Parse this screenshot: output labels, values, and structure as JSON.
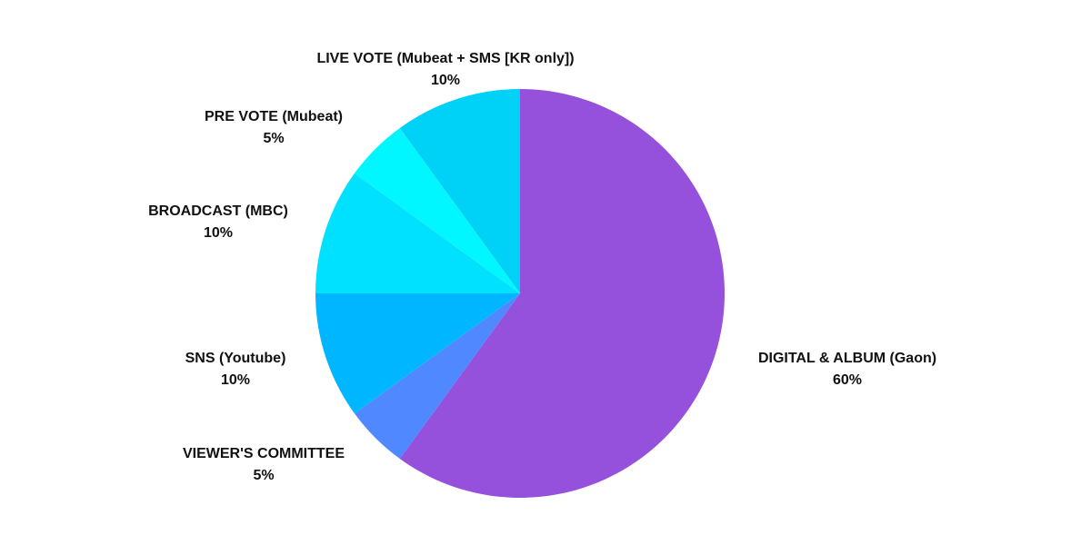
{
  "chart_data": {
    "type": "pie",
    "title": "",
    "slices": [
      {
        "label": "DIGITAL & ALBUM (Gaon)",
        "value": 60,
        "display": "60%",
        "color": "#9550dc"
      },
      {
        "label": "VIEWER'S COMMITTEE",
        "value": 5,
        "display": "5%",
        "color": "#4f88ff"
      },
      {
        "label": "SNS (Youtube)",
        "value": 10,
        "display": "10%",
        "color": "#00b7ff"
      },
      {
        "label": "BROADCAST (MBC)",
        "value": 10,
        "display": "10%",
        "color": "#00e1ff"
      },
      {
        "label": "PRE VOTE (Mubeat)",
        "value": 5,
        "display": "5%",
        "color": "#00f7ff"
      },
      {
        "label": "LIVE VOTE (Mubeat + SMS [KR only])",
        "value": 10,
        "display": "10%",
        "color": "#00d2f7"
      }
    ],
    "start": "12 o'clock",
    "direction": "clockwise",
    "legend": "none",
    "labels": "outside, name and percentage"
  }
}
